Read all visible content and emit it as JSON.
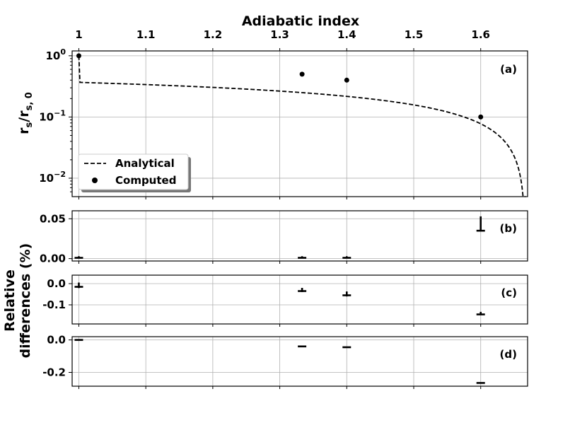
{
  "chart_data": [
    {
      "panel": "(a)",
      "type": "line",
      "xlabel": "Adiabatic index",
      "ylabel": "r_s/r_s,0",
      "ylabel_main": "r",
      "ylabel_sub": "s",
      "ylabel_div": "/r",
      "ylabel_sub2": "s, 0",
      "yscale": "log",
      "xlim": [
        0.99,
        1.67
      ],
      "ylim": [
        0.005,
        1.2
      ],
      "x_ticks": [
        1,
        1.1,
        1.2,
        1.3,
        1.4,
        1.5,
        1.6
      ],
      "x_tick_labels": [
        "1",
        "1.1",
        "1.2",
        "1.3",
        "1.4",
        "1.5",
        "1.6"
      ],
      "y_ticks": [
        {
          "value": 1,
          "base": "10",
          "exp": "0"
        },
        {
          "value": 0.1,
          "base": "10",
          "exp": "−1"
        },
        {
          "value": 0.01,
          "base": "10",
          "exp": "−2"
        }
      ],
      "grid": true,
      "legend_position": "bottom-left",
      "series": [
        {
          "name": "Analytical",
          "style": "dashed",
          "color": "#000000",
          "model": "r = (5/3 - g)^(2/(3g-3)) * (3/2)^(2/(3g-3)) ; r(1) = 1"
        },
        {
          "name": "Computed",
          "style": "marker",
          "color": "#000000",
          "x": [
            1.0,
            1.3333,
            1.4,
            1.6
          ],
          "y": [
            1.0,
            0.5,
            0.4,
            0.1
          ]
        }
      ]
    },
    {
      "panel": "(b)",
      "type": "scatter",
      "xlim": [
        0.99,
        1.67
      ],
      "ylim": [
        -0.003,
        0.06
      ],
      "y_ticks": [
        0.0,
        0.05
      ],
      "y_tick_labels": [
        "0.00",
        "0.05"
      ],
      "points": [
        {
          "x": 1.0,
          "y": 0.001,
          "err": 0.002
        },
        {
          "x": 1.3333,
          "y": 0.001,
          "err": 0.002
        },
        {
          "x": 1.4,
          "y": 0.001,
          "err": 0.002
        },
        {
          "x": 1.6,
          "y": 0.035,
          "err": 0.018
        }
      ]
    },
    {
      "panel": "(c)",
      "type": "scatter",
      "xlim": [
        0.99,
        1.67
      ],
      "ylim": [
        -0.19,
        0.04
      ],
      "y_ticks": [
        0.0,
        -0.1
      ],
      "y_tick_labels": [
        "0.0",
        "-0.1"
      ],
      "points": [
        {
          "x": 1.0,
          "y": -0.015,
          "err": 0.02
        },
        {
          "x": 1.3333,
          "y": -0.035,
          "err": 0.015
        },
        {
          "x": 1.4,
          "y": -0.055,
          "err": 0.018
        },
        {
          "x": 1.6,
          "y": -0.145,
          "err": 0.012
        }
      ]
    },
    {
      "panel": "(d)",
      "type": "scatter",
      "xlim": [
        0.99,
        1.67
      ],
      "ylim": [
        -0.285,
        0.02
      ],
      "y_ticks": [
        0.0,
        -0.2
      ],
      "y_tick_labels": [
        "0.0",
        "-0.2"
      ],
      "points": [
        {
          "x": 1.0,
          "y": 0.0
        },
        {
          "x": 1.3333,
          "y": -0.04
        },
        {
          "x": 1.4,
          "y": -0.045
        },
        {
          "x": 1.6,
          "y": -0.265
        }
      ]
    }
  ],
  "shared_ylabel_line1": "Relative",
  "shared_ylabel_line2": "differences (%)"
}
